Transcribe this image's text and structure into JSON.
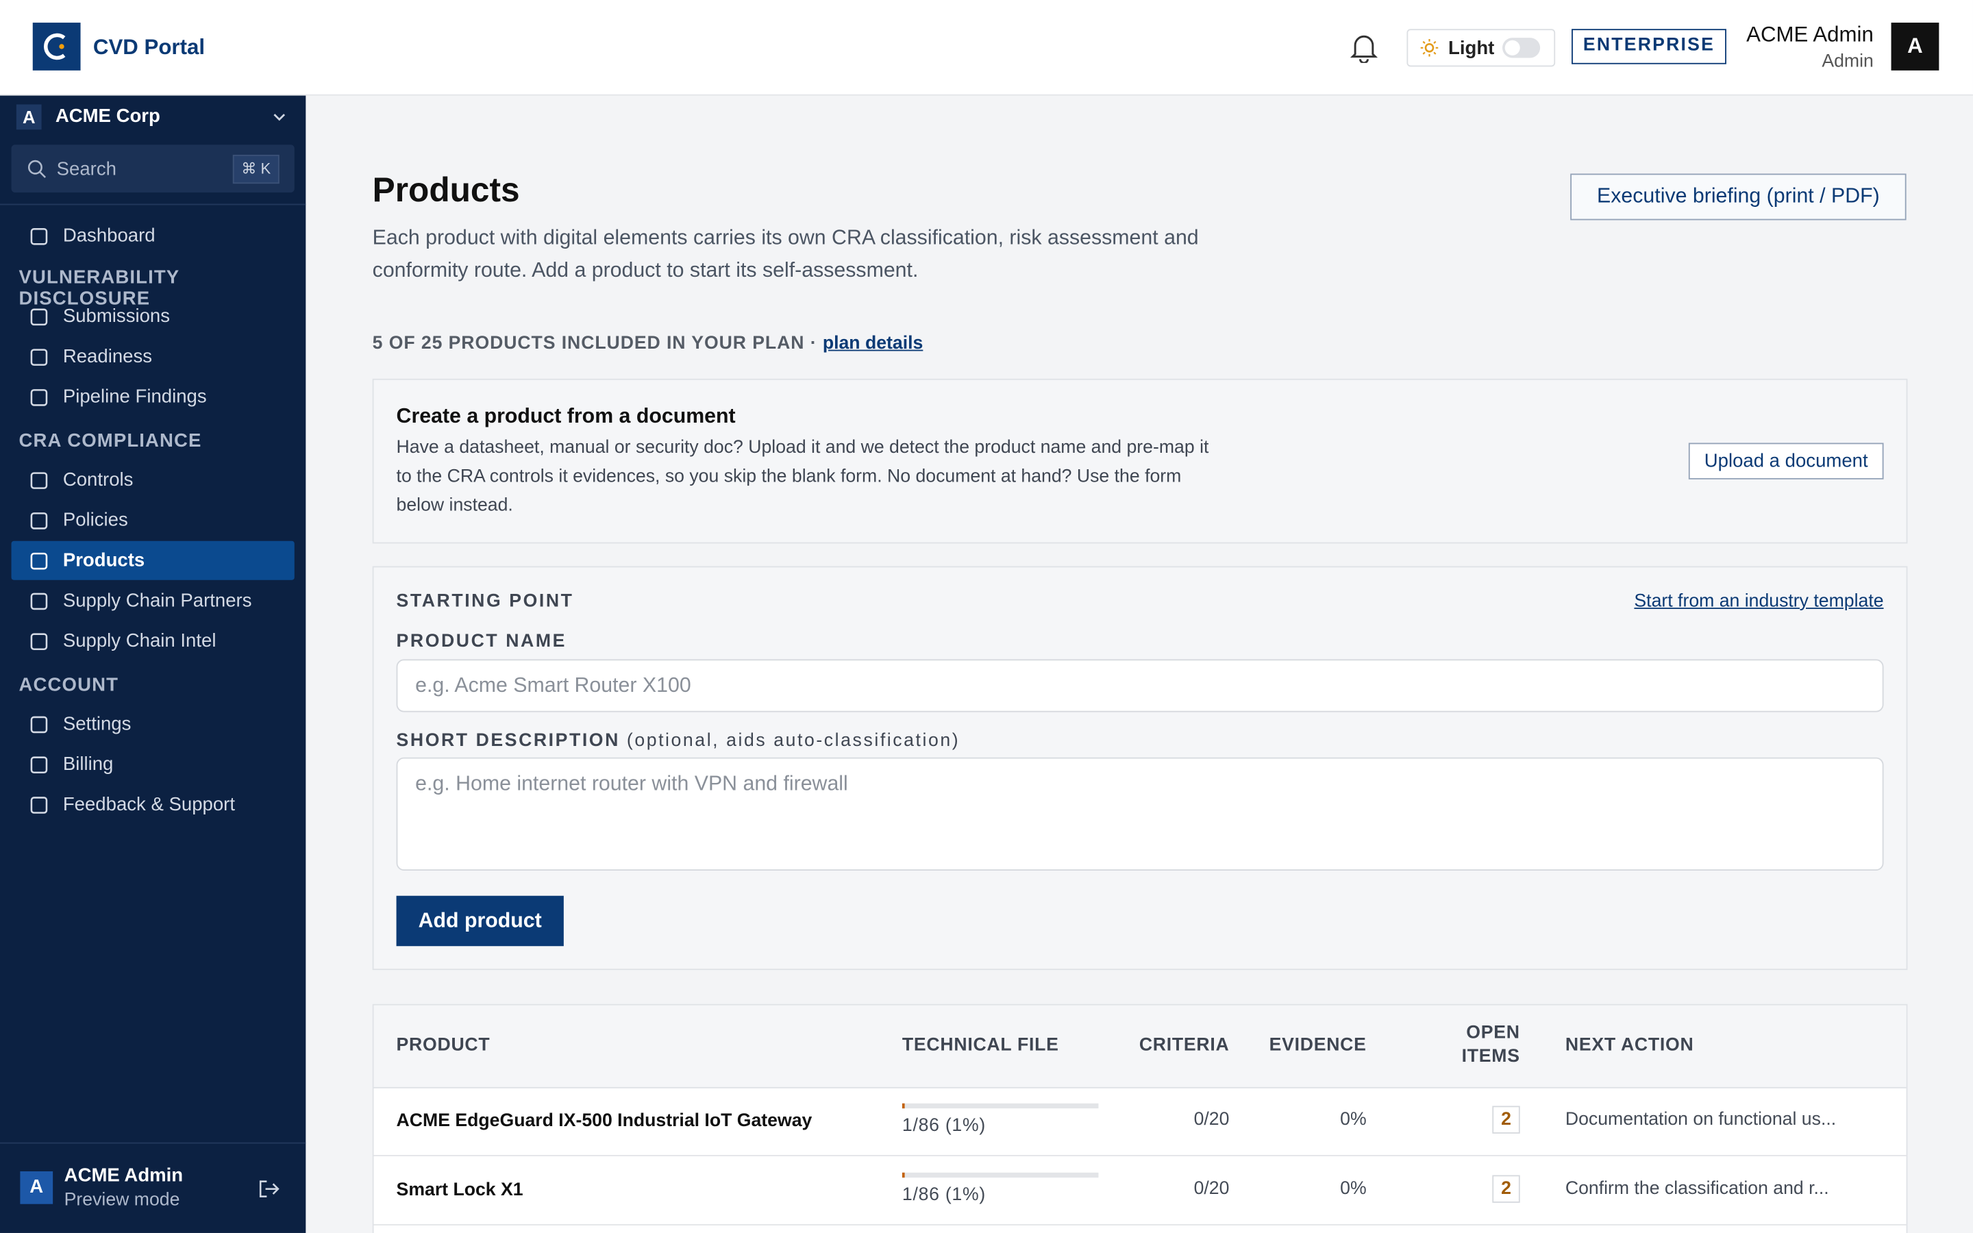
{
  "header": {
    "brand": "CVD Portal",
    "theme_label": "Light",
    "plan_badge": "ENTERPRISE",
    "user_name": "ACME Admin",
    "user_role": "Admin",
    "avatar": "A"
  },
  "sidebar": {
    "org_initial": "A",
    "org_name": "ACME Corp",
    "search_placeholder": "Search",
    "search_shortcut": "⌘ K",
    "dashboard": "Dashboard",
    "sections": [
      {
        "title": "VULNERABILITY DISCLOSURE",
        "items": [
          "Submissions",
          "Readiness",
          "Pipeline Findings"
        ]
      },
      {
        "title": "CRA COMPLIANCE",
        "items": [
          "Controls",
          "Policies",
          "Products",
          "Supply Chain Partners",
          "Supply Chain Intel"
        ]
      },
      {
        "title": "ACCOUNT",
        "items": [
          "Settings",
          "Billing",
          "Feedback & Support"
        ]
      }
    ],
    "footer": {
      "initial": "A",
      "name": "ACME Admin",
      "status": "Preview mode"
    }
  },
  "page": {
    "title": "Products",
    "description": "Each product with digital elements carries its own CRA classification, risk assessment and conformity route. Add a product to start its self-assessment.",
    "briefing_button": "Executive briefing (print / PDF)",
    "plan_notice": "5 OF 25 PRODUCTS INCLUDED IN YOUR PLAN · ",
    "plan_link": "plan details",
    "upload_card": {
      "title": "Create a product from a document",
      "body": "Have a datasheet, manual or security doc? Upload it and we detect the product name and pre-map it to the CRA controls it evidences, so you skip the blank form. No document at hand? Use the form below instead.",
      "button": "Upload a document"
    },
    "form": {
      "starting_point": "STARTING POINT",
      "template_link": "Start from an industry template",
      "name_label": "PRODUCT NAME",
      "name_placeholder": "e.g. Acme Smart Router X100",
      "desc_label": "SHORT DESCRIPTION",
      "desc_hint": "(optional, aids auto-classification)",
      "desc_placeholder": "e.g. Home internet router with VPN and firewall",
      "submit": "Add product"
    }
  },
  "table": {
    "columns": [
      "PRODUCT",
      "TECHNICAL FILE",
      "CRITERIA",
      "EVIDENCE",
      "OPEN ITEMS",
      "NEXT ACTION"
    ],
    "rows": [
      {
        "product": "ACME EdgeGuard IX-500 Industrial IoT Gateway",
        "technical_file": "1/86 (1%)",
        "technical_file_progress": 1,
        "criteria": "0/20",
        "evidence": "0%",
        "open_items": 2,
        "next_action": "Documentation on functional us..."
      },
      {
        "product": "Smart Lock X1",
        "technical_file": "1/86 (1%)",
        "technical_file_progress": 1,
        "criteria": "0/20",
        "evidence": "0%",
        "open_items": 2,
        "next_action": "Confirm the classification and r..."
      }
    ]
  }
}
